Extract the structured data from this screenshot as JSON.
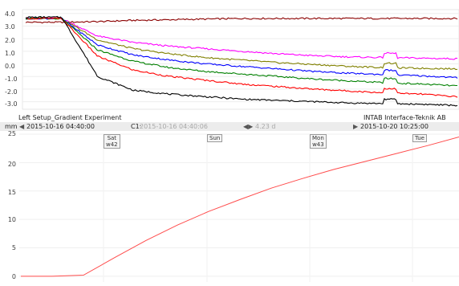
{
  "chart_data": [
    {
      "type": "line",
      "ylim": [
        -3.6,
        4.3
      ],
      "yticks": [
        "4.0",
        "3.0",
        "2.0",
        "1.0",
        "0.0",
        "-1.0",
        "-2.0",
        "-3.0"
      ],
      "grid": true,
      "series": [
        {
          "color": "#8b0000",
          "values": [
            3.3,
            3.3,
            3.35,
            3.45,
            3.5,
            3.55,
            3.6,
            3.6,
            3.6,
            3.6,
            3.6,
            3.6,
            3.6
          ]
        },
        {
          "color": "#ff00ff",
          "values": [
            3.6,
            3.6,
            2.2,
            1.7,
            1.4,
            1.2,
            1.0,
            0.8,
            0.65,
            0.55,
            0.5,
            0.45,
            0.4
          ]
        },
        {
          "color": "#808000",
          "values": [
            3.6,
            3.6,
            1.9,
            1.2,
            0.8,
            0.5,
            0.3,
            0.1,
            -0.05,
            -0.2,
            -0.3,
            -0.35,
            -0.4
          ]
        },
        {
          "color": "#0000ff",
          "values": [
            3.6,
            3.6,
            1.5,
            0.7,
            0.3,
            0.0,
            -0.2,
            -0.4,
            -0.6,
            -0.75,
            -0.85,
            -0.95,
            -1.1
          ]
        },
        {
          "color": "#008000",
          "values": [
            3.6,
            3.6,
            1.1,
            0.2,
            -0.3,
            -0.6,
            -0.8,
            -1.0,
            -1.2,
            -1.35,
            -1.5,
            -1.6,
            -1.75
          ]
        },
        {
          "color": "#ff0000",
          "values": [
            3.6,
            3.6,
            0.6,
            -0.5,
            -1.0,
            -1.3,
            -1.6,
            -1.8,
            -2.0,
            -2.15,
            -2.3,
            -2.4,
            -2.6
          ]
        },
        {
          "color": "#000000",
          "values": [
            3.7,
            3.7,
            -1.0,
            -2.1,
            -2.4,
            -2.6,
            -2.8,
            -2.9,
            -3.0,
            -3.1,
            -3.15,
            -3.2,
            -3.3
          ]
        }
      ]
    },
    {
      "type": "line",
      "ylabel": "mm",
      "ylim": [
        -1,
        25
      ],
      "yticks": [
        "25",
        "20",
        "15",
        "10",
        "5",
        "0"
      ],
      "grid": true,
      "series": [
        {
          "color": "#ff4c4c",
          "values": [
            0,
            0,
            0.2,
            3.3,
            6.3,
            9.0,
            11.4,
            13.5,
            15.5,
            17.2,
            18.8,
            20.2,
            21.6,
            23.0,
            24.5
          ]
        }
      ]
    }
  ],
  "info": {
    "left_title": "Left Setup_Gradient Experiment",
    "right_title": "INTAB Interface-Teknik AB"
  },
  "timebar": {
    "unit": "mm",
    "start_arrow": "◀",
    "start": "2015-10-16 04:40:00",
    "cursor_label": "C1:",
    "cursor_time": "2015-10-16 04:40:06",
    "span_arrows": "◀▶",
    "span": "4.23 d",
    "end_arrow": "▶",
    "end": "2015-10-20 10:25:00"
  },
  "days": [
    {
      "label": "Sat",
      "week": "w42"
    },
    {
      "label": "Sun",
      "week": ""
    },
    {
      "label": "Mon",
      "week": "w43"
    },
    {
      "label": "Tue",
      "week": ""
    }
  ]
}
